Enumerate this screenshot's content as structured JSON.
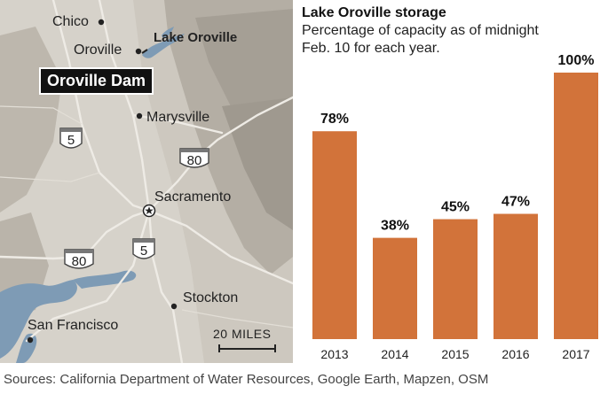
{
  "map": {
    "cities": {
      "chico": "Chico",
      "oroville": "Oroville",
      "marysville": "Marysville",
      "sacramento": "Sacramento",
      "stockton": "Stockton",
      "san_francisco": "San Francisco"
    },
    "lake_label": "Lake Oroville",
    "dam_label": "Oroville Dam",
    "highways": {
      "i5_north": "5",
      "i80_east": "80",
      "i5_south": "5",
      "i80_west": "80"
    },
    "scale_label": "20 MILES",
    "colors": {
      "land": "#c9c4ba",
      "relief": "#aaa49a",
      "water": "#7e9bb5",
      "road": "#e9e6df"
    }
  },
  "chart_data": {
    "type": "bar",
    "title": "Lake Oroville storage",
    "subtitle": "Percentage of capacity as of midnight Feb. 10 for each year.",
    "categories": [
      "2013",
      "2014",
      "2015",
      "2016",
      "2017"
    ],
    "values": [
      78,
      38,
      45,
      47,
      100
    ],
    "value_labels": [
      "78%",
      "38%",
      "45%",
      "47%",
      "100%"
    ],
    "ylim": [
      0,
      100
    ],
    "grid": false,
    "bar_color": "#d2733a"
  },
  "source": "Sources: California Department of Water Resources, Google Earth, Mapzen, OSM"
}
